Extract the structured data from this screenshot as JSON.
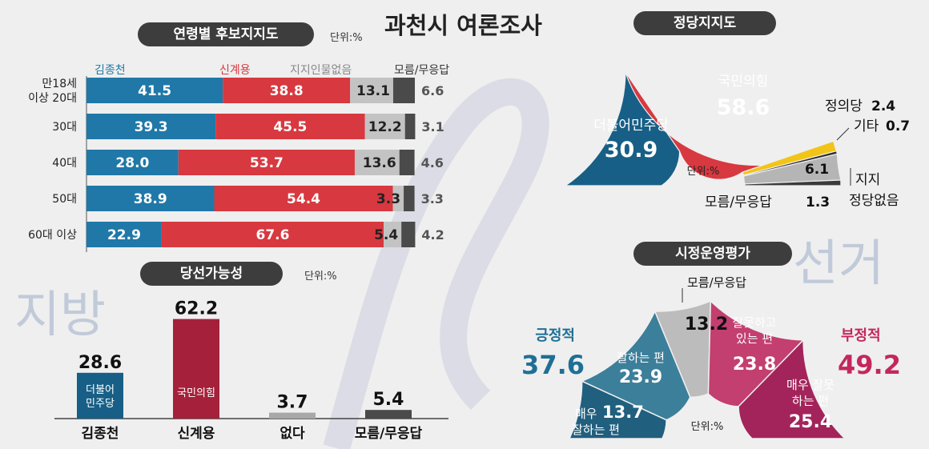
{
  "title": "과천시 여론조사",
  "watermark": {
    "left": "지방",
    "right": "선거"
  },
  "colors": {
    "blue": "#1f78a8",
    "red": "#d8383f",
    "gray": "#c3c3c3",
    "dark": "#4a4a4a",
    "wine": "#a5203a",
    "yellow": "#f2c418",
    "pink": "#c23f6f",
    "magenta": "#a3245a",
    "teal": "#3c7f9a",
    "darkblue": "#175f86"
  },
  "chart_data": [
    {
      "id": "age",
      "type": "bar",
      "title": "연령별 후보지지도",
      "unit": "단위:%",
      "stacked": true,
      "orientation": "horizontal",
      "categories": [
        "만18세 이상 20대",
        "30대",
        "40대",
        "50대",
        "60대 이상"
      ],
      "category_lines": [
        [
          "만18세",
          "이상 20대"
        ],
        [
          "30대"
        ],
        [
          "40대"
        ],
        [
          "50대"
        ],
        [
          "60대 이상"
        ]
      ],
      "series": [
        {
          "name": "김종천",
          "values": [
            41.5,
            39.3,
            28.0,
            38.9,
            22.9
          ]
        },
        {
          "name": "신계용",
          "values": [
            38.8,
            45.5,
            53.7,
            54.4,
            67.6
          ]
        },
        {
          "name": "지지인물없음",
          "values": [
            13.1,
            12.2,
            13.6,
            3.3,
            5.4
          ]
        },
        {
          "name": "모름/무응답",
          "values": [
            6.6,
            3.1,
            4.6,
            3.3,
            4.2
          ]
        }
      ],
      "value_labels": [
        [
          "41.5",
          "38.8",
          "13.1",
          "6.6"
        ],
        [
          "39.3",
          "45.5",
          "12.2",
          "3.1"
        ],
        [
          "28.0",
          "53.7",
          "13.6",
          "4.6"
        ],
        [
          "38.9",
          "54.4",
          "3.3",
          "3.3"
        ],
        [
          "22.9",
          "67.6",
          "5.4",
          "4.2"
        ]
      ]
    },
    {
      "id": "win",
      "type": "bar",
      "title": "당선가능성",
      "unit": "단위:%",
      "categories": [
        "김종천",
        "신계용",
        "없다",
        "모름/무응답"
      ],
      "values": [
        28.6,
        62.2,
        3.7,
        5.4
      ],
      "value_labels": [
        "28.6",
        "62.2",
        "3.7",
        "5.4"
      ],
      "bar_labels": [
        [
          "더불어",
          "민주당"
        ],
        [
          "국민의힘"
        ],
        [],
        []
      ]
    },
    {
      "id": "party",
      "type": "pie",
      "title": "정당지지도",
      "unit": "단위:%",
      "shape": "half-donut",
      "slices": [
        {
          "name": "더불어민주당",
          "value": 30.9,
          "label": "30.9"
        },
        {
          "name": "국민의힘",
          "value": 58.6,
          "label": "58.6"
        },
        {
          "name": "정의당",
          "value": 2.4,
          "label": "2.4"
        },
        {
          "name": "기타",
          "value": 0.7,
          "label": "0.7"
        },
        {
          "name": "지지 정당없음",
          "value": 6.1,
          "label": "6.1"
        },
        {
          "name": "모름/무응답",
          "value": 1.3,
          "label": "1.3"
        }
      ]
    },
    {
      "id": "gov",
      "type": "pie",
      "title": "시정운영평가",
      "unit": "단위:%",
      "shape": "half-donut",
      "slices": [
        {
          "name": "매우 잘하는 편",
          "value": 13.7,
          "label": "13.7"
        },
        {
          "name": "잘하는 편",
          "value": 23.9,
          "label": "23.9"
        },
        {
          "name": "모름/무응답",
          "value": 13.2,
          "label": "13.2"
        },
        {
          "name": "잘못하고 있는 편",
          "value": 23.8,
          "label": "23.8"
        },
        {
          "name": "매우 잘못 하는 편",
          "value": 25.4,
          "label": "25.4"
        }
      ],
      "positive": {
        "label": "긍정적",
        "value": "37.6"
      },
      "negative": {
        "label": "부정적",
        "value": "49.2"
      }
    }
  ]
}
